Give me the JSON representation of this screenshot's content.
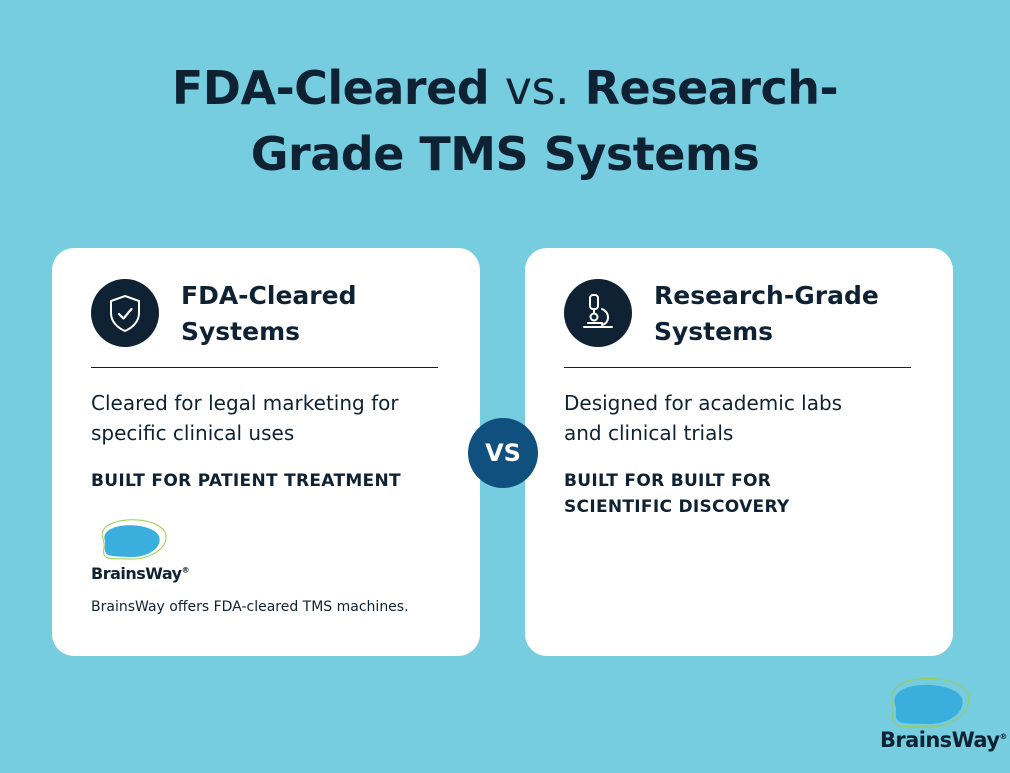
{
  "title": {
    "part1": "FDA-Cleared",
    "part2": "vs.",
    "part3": "Research-Grade TMS Systems"
  },
  "cards": [
    {
      "heading": "FDA-Cleared Systems",
      "description": "Cleared for legal marketing for specific clinical uses",
      "tag": "BUILT FOR PATIENT TREATMENT",
      "logo": "BrainsWay",
      "logo_mark": "®",
      "note": "BrainsWay offers FDA-cleared TMS machines."
    },
    {
      "heading": "Research-Grade Systems",
      "description": "Designed for academic labs and clinical trials",
      "tag": "BUILT FOR BUILT FOR SCIENTIFIC DISCOVERY"
    }
  ],
  "versus": "VS",
  "brand": {
    "name": "BrainsWay",
    "mark": "®"
  }
}
